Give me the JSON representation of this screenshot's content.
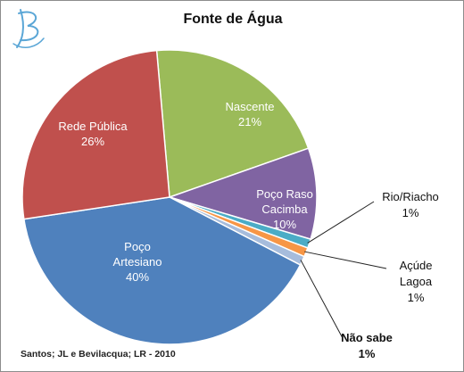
{
  "chart_data": {
    "type": "pie",
    "title": "Fonte de Água",
    "slices": [
      {
        "name": "Nascente",
        "label_lines": [
          "Nascente",
          "21%"
        ],
        "value": 21,
        "color": "#9bbb59"
      },
      {
        "name": "Poço Raso Cacimba",
        "label_lines": [
          "Poço Raso",
          "Cacimba",
          "10%"
        ],
        "value": 10,
        "color": "#8064a2"
      },
      {
        "name": "Rio/Riacho",
        "label_lines": [
          "Rio/Riacho",
          "1%"
        ],
        "value": 1,
        "color": "#4bacc6"
      },
      {
        "name": "Açúde Lagoa",
        "label_lines": [
          "Açúde",
          "Lagoa",
          "1%"
        ],
        "value": 1,
        "color": "#f79646"
      },
      {
        "name": "Não sabe",
        "label_lines": [
          "Não sabe",
          "1%"
        ],
        "value": 1,
        "color": "#a6bcdc"
      },
      {
        "name": "Poço Artesiano",
        "label_lines": [
          "Poço",
          "Artesiano",
          "40%"
        ],
        "value": 40,
        "color": "#4f81bd"
      },
      {
        "name": "Rede Pública",
        "label_lines": [
          "Rede Pública",
          "26%"
        ],
        "value": 26,
        "color": "#c0504d"
      }
    ],
    "legend": "none",
    "source_note": "Santos; JL e Bevilacqua; LR - 2010"
  },
  "logo": {
    "icon": "stylized-b-logo",
    "color": "#5aa6d6"
  }
}
